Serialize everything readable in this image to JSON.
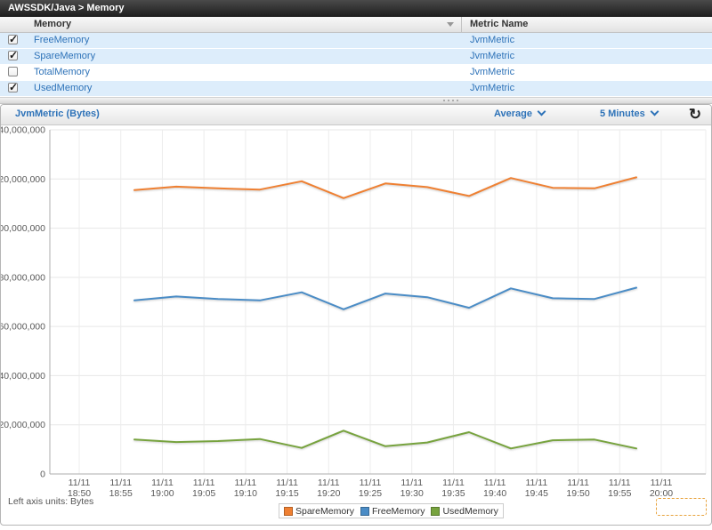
{
  "table": {
    "breadcrumb": "AWSSDK/Java > Memory",
    "columns": {
      "memory": "Memory",
      "metric_name": "Metric Name"
    },
    "rows": [
      {
        "name": "FreeMemory",
        "metric": "JvmMetric",
        "checked": true
      },
      {
        "name": "SpareMemory",
        "metric": "JvmMetric",
        "checked": true
      },
      {
        "name": "TotalMemory",
        "metric": "JvmMetric",
        "checked": false
      },
      {
        "name": "UsedMemory",
        "metric": "JvmMetric",
        "checked": true
      }
    ]
  },
  "chart": {
    "title": "JvmMetric (Bytes)",
    "statistic_dropdown": "Average",
    "period_dropdown": "5 Minutes",
    "refresh_icon": "refresh",
    "units_label": "Left axis units: Bytes"
  },
  "chart_data": {
    "type": "line",
    "title": "JvmMetric (Bytes)",
    "ylabel": "Bytes",
    "ylim": [
      0,
      140000000
    ],
    "y_tick_step": 20000000,
    "grid": true,
    "legend_position": "bottom",
    "x_tick_date": "11/11",
    "x_tick_times": [
      "18:50",
      "18:55",
      "19:00",
      "19:05",
      "19:10",
      "19:15",
      "19:20",
      "19:25",
      "19:30",
      "19:35",
      "19:40",
      "19:45",
      "19:50",
      "19:55",
      "20:00"
    ],
    "point_times": [
      "18:56",
      "19:01",
      "19:06",
      "19:11",
      "19:16",
      "19:21",
      "19:26",
      "19:31",
      "19:36",
      "19:41",
      "19:46",
      "19:51",
      "19:56"
    ],
    "series": [
      {
        "name": "SpareMemory",
        "color": "#ef8032",
        "values": [
          115500000,
          116900000,
          116200000,
          115700000,
          119100000,
          112200000,
          118200000,
          116700000,
          113100000,
          120400000,
          116400000,
          116200000,
          120700000
        ]
      },
      {
        "name": "FreeMemory",
        "color": "#4a8cc6",
        "values": [
          70600000,
          72200000,
          71200000,
          70600000,
          73900000,
          67000000,
          73400000,
          71900000,
          67600000,
          75500000,
          71500000,
          71200000,
          75800000
        ]
      },
      {
        "name": "UsedMemory",
        "color": "#77a33e",
        "values": [
          14000000,
          13000000,
          13400000,
          14200000,
          10600000,
          17600000,
          11300000,
          12800000,
          17000000,
          10400000,
          13700000,
          14000000,
          10400000
        ]
      }
    ]
  }
}
